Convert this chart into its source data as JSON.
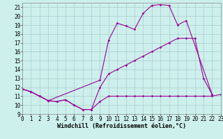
{
  "line1_x": [
    0,
    1,
    2,
    3,
    4,
    5,
    6,
    7,
    8,
    9,
    10,
    11,
    12,
    13,
    14,
    15,
    16,
    17,
    18,
    19,
    20,
    21,
    22,
    23
  ],
  "line1_y": [
    11.8,
    11.5,
    11.0,
    10.5,
    10.4,
    10.6,
    10.0,
    9.5,
    9.5,
    10.4,
    11.0,
    11.0,
    11.0,
    11.0,
    11.0,
    11.0,
    11.0,
    11.0,
    11.0,
    11.0,
    11.0,
    11.0,
    11.0,
    11.2
  ],
  "line2_x": [
    0,
    1,
    2,
    3,
    4,
    5,
    6,
    7,
    8,
    9,
    10,
    11,
    12,
    13,
    14,
    15,
    16,
    17,
    18,
    19,
    20,
    21,
    22
  ],
  "line2_y": [
    11.8,
    11.5,
    11.0,
    10.5,
    10.4,
    10.6,
    10.0,
    9.5,
    9.5,
    12.0,
    13.5,
    14.0,
    14.5,
    15.0,
    15.5,
    16.0,
    16.5,
    17.0,
    17.5,
    17.5,
    17.5,
    13.0,
    11.2
  ],
  "line3_x": [
    0,
    1,
    2,
    3,
    9,
    10,
    11,
    12,
    13,
    14,
    15,
    16,
    17,
    18,
    19,
    22
  ],
  "line3_y": [
    11.8,
    11.5,
    11.0,
    10.5,
    12.8,
    17.3,
    19.2,
    18.9,
    18.5,
    20.3,
    21.2,
    21.3,
    21.2,
    19.0,
    19.5,
    11.2
  ],
  "xlim": [
    0,
    23
  ],
  "ylim": [
    9,
    21.5
  ],
  "yticks": [
    9,
    10,
    11,
    12,
    13,
    14,
    15,
    16,
    17,
    18,
    19,
    20,
    21
  ],
  "xticks": [
    0,
    1,
    2,
    3,
    4,
    5,
    6,
    7,
    8,
    9,
    10,
    11,
    12,
    13,
    14,
    15,
    16,
    17,
    18,
    19,
    20,
    21,
    22,
    23
  ],
  "line_color": "#990099",
  "bg_color": "#cdf0ec",
  "grid_color": "#aacccc",
  "xlabel": "Windchill (Refroidissement éolien,°C)",
  "xlabel_fontsize": 6.0,
  "tick_fontsize": 5.5
}
